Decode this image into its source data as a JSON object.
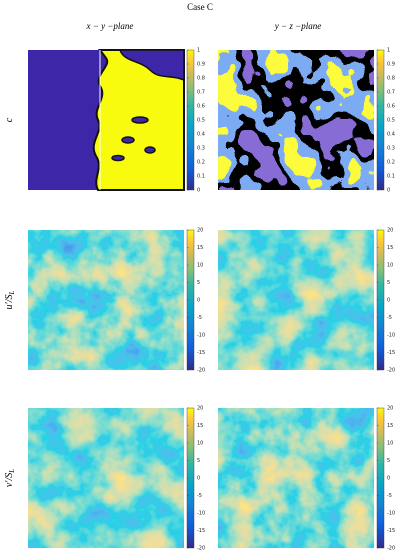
{
  "title": "Case C",
  "columns": [
    "x − y −plane",
    "y − z −plane"
  ],
  "rows": [
    {
      "label": "c",
      "sub": "",
      "lim": [
        0,
        1
      ],
      "ticks": [
        0,
        0.1,
        0.2,
        0.3,
        0.4,
        0.5,
        0.6,
        0.7,
        0.8,
        0.9,
        1
      ]
    },
    {
      "label": "u′/S",
      "sub": "L",
      "lim": [
        -20,
        20
      ],
      "ticks": [
        -20,
        -15,
        -10,
        -5,
        0,
        5,
        10,
        15,
        20
      ]
    },
    {
      "label": "v′/S",
      "sub": "L",
      "lim": [
        -20,
        20
      ],
      "ticks": [
        -20,
        -15,
        -10,
        -5,
        0,
        5,
        10,
        15,
        20
      ]
    }
  ]
}
